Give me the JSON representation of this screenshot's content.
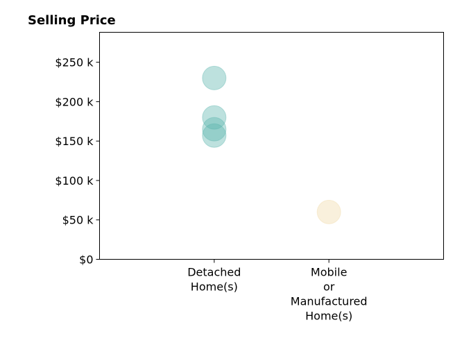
{
  "chart_data": {
    "type": "scatter",
    "title": "Selling Price",
    "xlabel": "",
    "ylabel": "",
    "categories": [
      [
        "Detached",
        "Home(s)"
      ],
      [
        "Mobile",
        "or",
        "Manufactured",
        "Home(s)"
      ]
    ],
    "y_ticks": [
      "$0",
      "$50 k",
      "$100 k",
      "$150 k",
      "$200 k",
      "$250 k"
    ],
    "y_tick_values": [
      0,
      50000,
      100000,
      150000,
      200000,
      250000
    ],
    "ylim": [
      0,
      288000
    ],
    "xlim": [
      -1,
      2
    ],
    "grid": false,
    "legend": "none",
    "series": [
      {
        "category_index": 0,
        "color": "#5ab4ac",
        "values": [
          230000,
          180000,
          165000,
          157000
        ]
      },
      {
        "category_index": 1,
        "color": "#f0d9a8",
        "values": [
          60000
        ]
      }
    ]
  }
}
